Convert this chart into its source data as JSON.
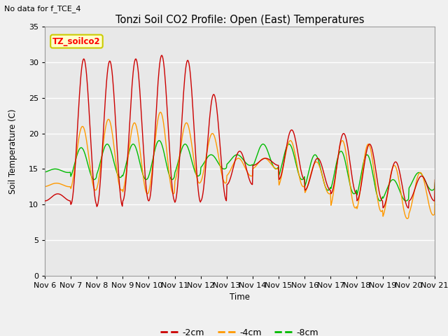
{
  "title": "Tonzi Soil CO2 Profile: Open (East) Temperatures",
  "subtitle": "No data for f_TCE_4",
  "ylabel": "Soil Temperature (C)",
  "xlabel": "Time",
  "ylim": [
    0,
    35
  ],
  "yticks": [
    0,
    5,
    10,
    15,
    20,
    25,
    30,
    35
  ],
  "xtick_labels": [
    "Nov 6",
    "Nov 7",
    "Nov 8",
    "Nov 9",
    "Nov 10",
    "Nov 11",
    "Nov 12",
    "Nov 13",
    "Nov 14",
    "Nov 15",
    "Nov 16",
    "Nov 17",
    "Nov 18",
    "Nov 19",
    "Nov 20",
    "Nov 21"
  ],
  "legend_label": "TZ_soilco2",
  "legend_box_facecolor": "#ffffcc",
  "legend_box_edgecolor": "#cccc00",
  "series_neg2cm_label": "-2cm",
  "series_neg2cm_color": "#cc0000",
  "series_neg4cm_label": "-4cm",
  "series_neg4cm_color": "#ff9900",
  "series_neg8cm_label": "-8cm",
  "series_neg8cm_color": "#00bb00",
  "fig_facecolor": "#f0f0f0",
  "ax_facecolor": "#e8e8e8",
  "grid_color": "#ffffff",
  "peaks_2cm": [
    11.5,
    30.5,
    30.2,
    30.5,
    31.0,
    30.3,
    25.5,
    17.5,
    16.5,
    20.5,
    16.5,
    20.0,
    18.5,
    16.0,
    14.0,
    14.0
  ],
  "troughs_2cm": [
    10.5,
    10.0,
    9.7,
    10.5,
    10.5,
    10.3,
    10.5,
    12.8,
    15.5,
    13.5,
    12.0,
    11.5,
    10.5,
    9.5,
    10.5,
    13.5
  ],
  "peaks_4cm": [
    13.0,
    21.0,
    22.0,
    21.5,
    23.0,
    21.5,
    20.0,
    16.5,
    16.5,
    19.0,
    16.0,
    19.0,
    18.5,
    15.5,
    14.5,
    14.0
  ],
  "troughs_4cm": [
    12.5,
    12.0,
    12.0,
    11.5,
    11.5,
    13.0,
    13.0,
    14.0,
    15.0,
    12.5,
    11.5,
    9.5,
    9.0,
    8.0,
    8.5,
    13.5
  ],
  "peaks_8cm": [
    15.0,
    18.0,
    18.5,
    18.5,
    19.0,
    18.5,
    17.0,
    17.0,
    18.5,
    18.5,
    17.0,
    17.5,
    17.0,
    13.5,
    14.5,
    14.0
  ],
  "troughs_8cm": [
    14.5,
    13.5,
    13.8,
    13.5,
    13.5,
    14.0,
    15.0,
    15.5,
    15.0,
    13.5,
    12.0,
    11.5,
    10.5,
    10.5,
    12.0,
    13.0
  ]
}
